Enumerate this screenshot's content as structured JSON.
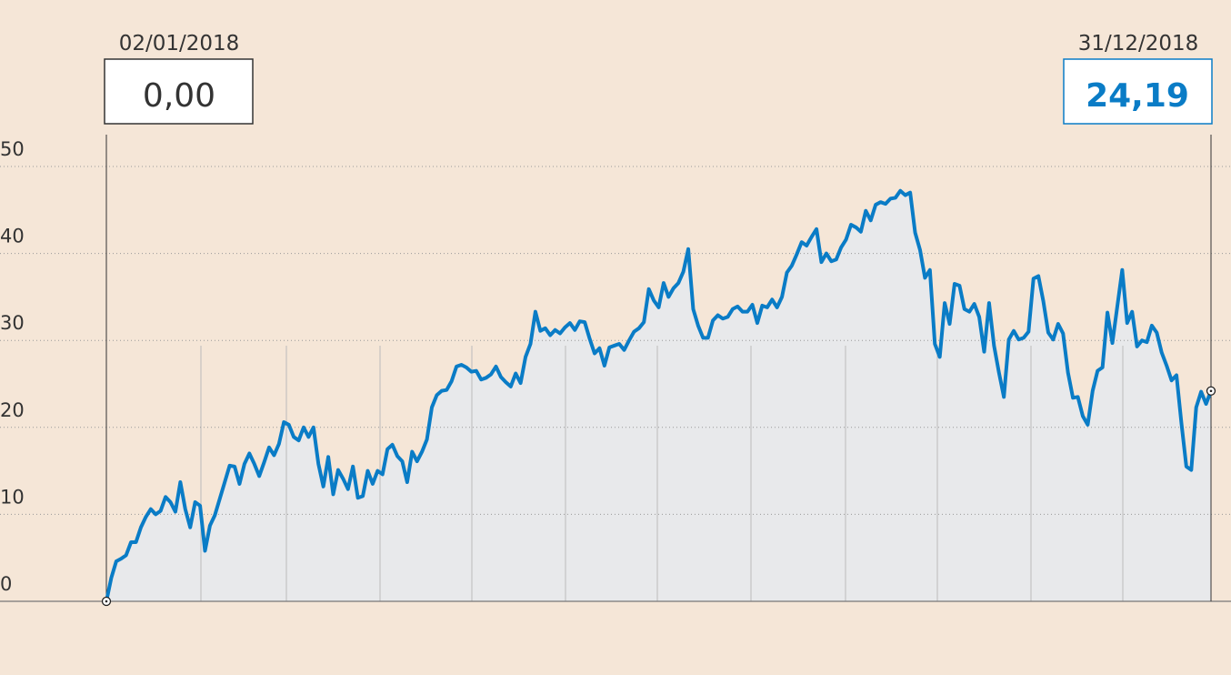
{
  "chart_data": {
    "type": "line",
    "start": {
      "date": "02/01/2018",
      "value": 0,
      "label": "0,00"
    },
    "end": {
      "date": "31/12/2018",
      "value": 24.19,
      "label": "24,19"
    },
    "series": [
      {
        "color": "#0a7cc6",
        "values": [
          0,
          2.7,
          4.6,
          4.9,
          5.3,
          6.8,
          6.8,
          8.5,
          9.7,
          10.6,
          10,
          10.4,
          12,
          11.4,
          10.3,
          13.7,
          10.6,
          8.5,
          11.4,
          11,
          5.8,
          8.7,
          9.9,
          11.8,
          13.7,
          15.6,
          15.5,
          13.5,
          15.8,
          17,
          15.8,
          14.4,
          16,
          17.7,
          16.8,
          18.1,
          20.6,
          20.3,
          18.9,
          18.5,
          20,
          18.9,
          20,
          15.8,
          13.2,
          16.6,
          12.3,
          15.1,
          14.1,
          12.9,
          15.5,
          11.9,
          12.1,
          15,
          13.5,
          15,
          14.6,
          17.5,
          18,
          16.7,
          16.1,
          13.7,
          17.2,
          16.1,
          17.2,
          18.6,
          22.3,
          23.7,
          24.2,
          24.3,
          25.3,
          27,
          27.2,
          26.9,
          26.4,
          26.5,
          25.5,
          25.7,
          26.1,
          27,
          25.8,
          25.2,
          24.7,
          26.2,
          25.1,
          28.1,
          29.6,
          33.3,
          31.1,
          31.4,
          30.6,
          31.2,
          30.8,
          31.5,
          32,
          31.2,
          32.2,
          32.1,
          30.2,
          28.5,
          29.1,
          27.1,
          29.2,
          29.4,
          29.6,
          28.9,
          30,
          31,
          31.4,
          32.1,
          35.9,
          34.6,
          33.8,
          36.6,
          35,
          36,
          36.6,
          37.9,
          40.5,
          33.6,
          31.7,
          30.3,
          30.3,
          32.3,
          32.9,
          32.5,
          32.7,
          33.6,
          33.9,
          33.3,
          33.3,
          34.1,
          32,
          34,
          33.8,
          34.7,
          33.8,
          35,
          37.8,
          38.6,
          39.9,
          41.3,
          40.9,
          41.9,
          42.8,
          39,
          40,
          39.1,
          39.3,
          40.7,
          41.6,
          43.3,
          43,
          42.5,
          44.9,
          43.8,
          45.6,
          45.9,
          45.7,
          46.3,
          46.4,
          47.2,
          46.7,
          47,
          42.4,
          40.4,
          37.2,
          38.1,
          29.6,
          28.1,
          34.3,
          31.9,
          36.5,
          36.3,
          33.6,
          33.3,
          34.2,
          32.7,
          28.7,
          34.3,
          29.4,
          26.3,
          23.5,
          30.1,
          31.1,
          30.1,
          30.3,
          31,
          37.1,
          37.4,
          34.5,
          30.9,
          30.1,
          31.9,
          30.8,
          26.3,
          23.4,
          23.5,
          21.3,
          20.3,
          24.2,
          26.5,
          26.9,
          33.2,
          29.7,
          33.9,
          38.1,
          32,
          33.3,
          29.3,
          30,
          29.8,
          31.7,
          30.9,
          28.6,
          27.1,
          25.4,
          26,
          20.5,
          15.5,
          15.1,
          22.3,
          24.1,
          22.7,
          24.19
        ]
      }
    ],
    "ylim": [
      0,
      50
    ],
    "yticks": [
      0,
      10,
      20,
      30,
      40,
      50
    ],
    "grid": true,
    "area_color": "#e8e9eb"
  }
}
